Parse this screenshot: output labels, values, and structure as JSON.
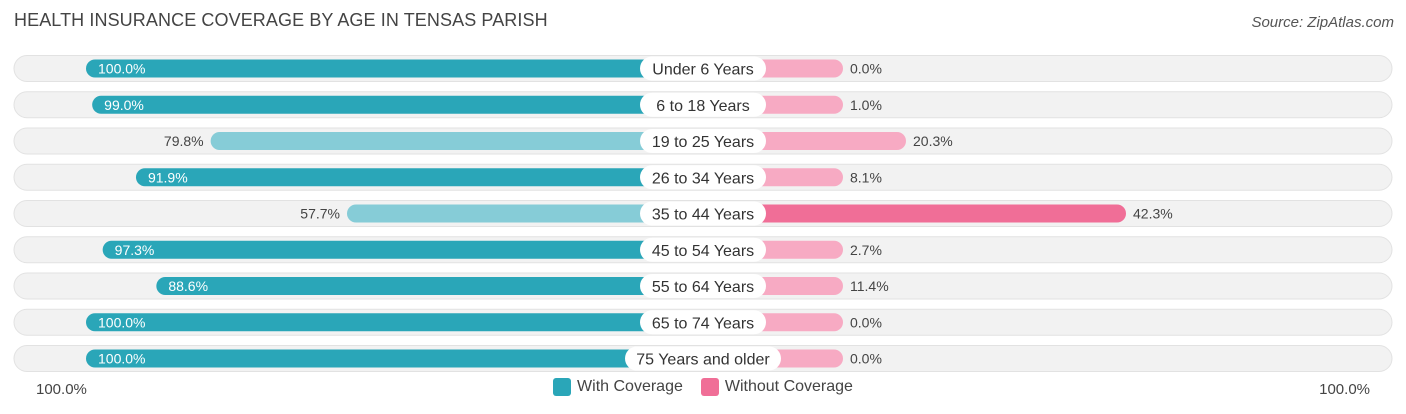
{
  "title": "HEALTH INSURANCE COVERAGE BY AGE IN TENSAS PARISH",
  "source": "Source: ZipAtlas.com",
  "colors": {
    "with_strong": "#2aa6b8",
    "with_light": "#86ccd7",
    "without_strong": "#f06e97",
    "without_light": "#f7aac3",
    "track": "#efefef"
  },
  "chart_data": {
    "type": "bar",
    "orientation": "horizontal-diverging",
    "categories": [
      "Under 6 Years",
      "6 to 18 Years",
      "19 to 25 Years",
      "26 to 34 Years",
      "35 to 44 Years",
      "45 to 54 Years",
      "55 to 64 Years",
      "65 to 74 Years",
      "75 Years and older"
    ],
    "series": [
      {
        "name": "With Coverage",
        "values": [
          100.0,
          99.0,
          79.8,
          91.9,
          57.7,
          97.3,
          88.6,
          100.0,
          100.0
        ],
        "labels": [
          "100.0%",
          "99.0%",
          "79.8%",
          "91.9%",
          "57.7%",
          "97.3%",
          "88.6%",
          "100.0%",
          "100.0%"
        ]
      },
      {
        "name": "Without Coverage",
        "values": [
          0.0,
          1.0,
          20.3,
          8.1,
          42.3,
          2.7,
          11.4,
          0.0,
          0.0
        ],
        "labels": [
          "0.0%",
          "1.0%",
          "20.3%",
          "8.1%",
          "42.3%",
          "2.7%",
          "11.4%",
          "0.0%",
          "0.0%"
        ]
      }
    ],
    "xlim": [
      0,
      100
    ],
    "axis_left_label": "100.0%",
    "axis_right_label": "100.0%",
    "legend_position": "bottom-center"
  }
}
